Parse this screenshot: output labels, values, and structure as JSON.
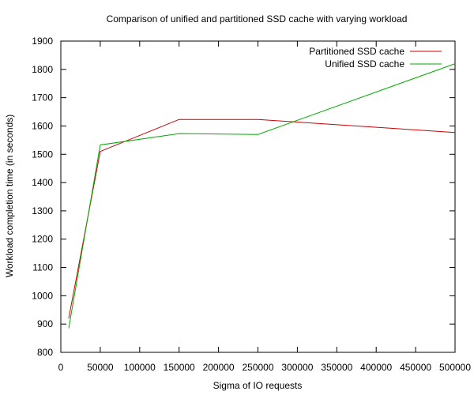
{
  "chart_data": {
    "type": "line",
    "title": "Comparison of unified and partitioned SSD cache with varying workload",
    "xlabel": "Sigma of IO requests",
    "ylabel": "Workload completion time (in seconds)",
    "xlim": [
      0,
      500000
    ],
    "ylim": [
      800,
      1900
    ],
    "x_ticks": [
      0,
      50000,
      100000,
      150000,
      200000,
      250000,
      300000,
      350000,
      400000,
      450000,
      500000
    ],
    "y_ticks": [
      800,
      900,
      1000,
      1100,
      1200,
      1300,
      1400,
      1500,
      1600,
      1700,
      1800,
      1900
    ],
    "x_tick_labels": [
      "0",
      "50000",
      "100000",
      "150000",
      "200000",
      "250000",
      "300000",
      "350000",
      "400000",
      "450000",
      "500000"
    ],
    "y_tick_labels": [
      "800",
      "900",
      "1000",
      "1100",
      "1200",
      "1300",
      "1400",
      "1500",
      "1600",
      "1700",
      "1800",
      "1900"
    ],
    "grid": false,
    "legend_position": "top-right",
    "series": [
      {
        "name": "Partitioned SSD cache",
        "color": "#cc0000",
        "x": [
          10000,
          50000,
          150000,
          250000,
          500000
        ],
        "y": [
          920,
          1510,
          1623,
          1623,
          1577
        ]
      },
      {
        "name": "Unified SSD cache",
        "color": "#00aa00",
        "x": [
          10000,
          50000,
          150000,
          250000,
          500000
        ],
        "y": [
          885,
          1533,
          1573,
          1570,
          1820
        ]
      }
    ]
  }
}
